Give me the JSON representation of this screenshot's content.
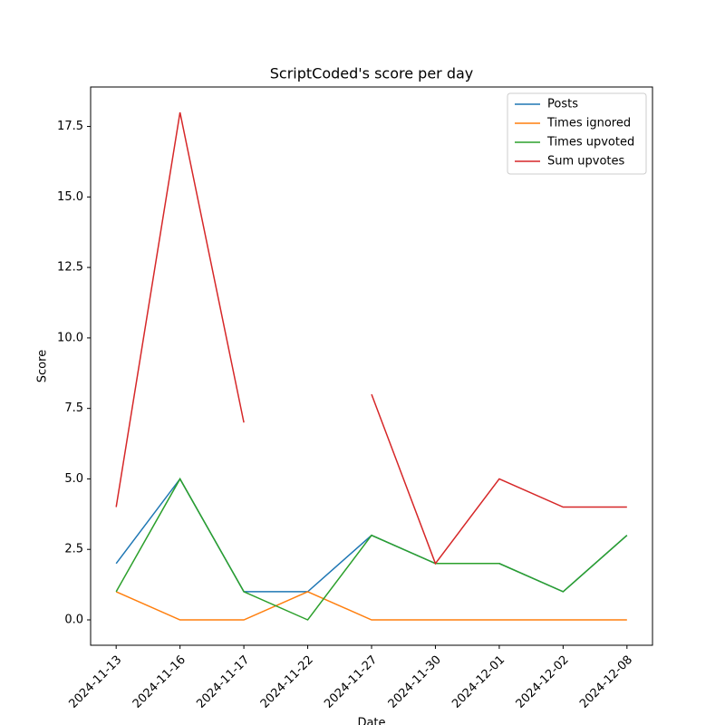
{
  "chart_data": {
    "type": "line",
    "title": "ScriptCoded's score per day",
    "x_label": "Date",
    "y_label": "Score",
    "categories": [
      "2024-11-13",
      "2024-11-16",
      "2024-11-17",
      "2024-11-22",
      "2024-11-27",
      "2024-11-30",
      "2024-12-01",
      "2024-12-02",
      "2024-12-08"
    ],
    "series": [
      {
        "name": "Posts",
        "color": "#1f77b4",
        "values": [
          2,
          5,
          1,
          1,
          3,
          2,
          2,
          1,
          3
        ]
      },
      {
        "name": "Times ignored",
        "color": "#ff7f0e",
        "values": [
          1,
          0,
          0,
          1,
          0,
          0,
          0,
          0,
          0
        ]
      },
      {
        "name": "Times upvoted",
        "color": "#2ca02c",
        "values": [
          1,
          5,
          1,
          0,
          3,
          2,
          2,
          1,
          3
        ]
      },
      {
        "name": "Sum upvotes",
        "color": "#d62728",
        "values": [
          4,
          18,
          7,
          null,
          8,
          2,
          5,
          4,
          4
        ]
      }
    ],
    "ylim": [
      -0.9,
      18.9
    ],
    "yticks": [
      {
        "value": 0,
        "label": "0.0"
      },
      2.5,
      {
        "value": 5,
        "label": "5.0"
      },
      7.5,
      {
        "value": 10,
        "label": "10.0"
      },
      12.5,
      {
        "value": 15,
        "label": "15.0"
      },
      17.5
    ],
    "grid": false,
    "legend": "upper right"
  }
}
